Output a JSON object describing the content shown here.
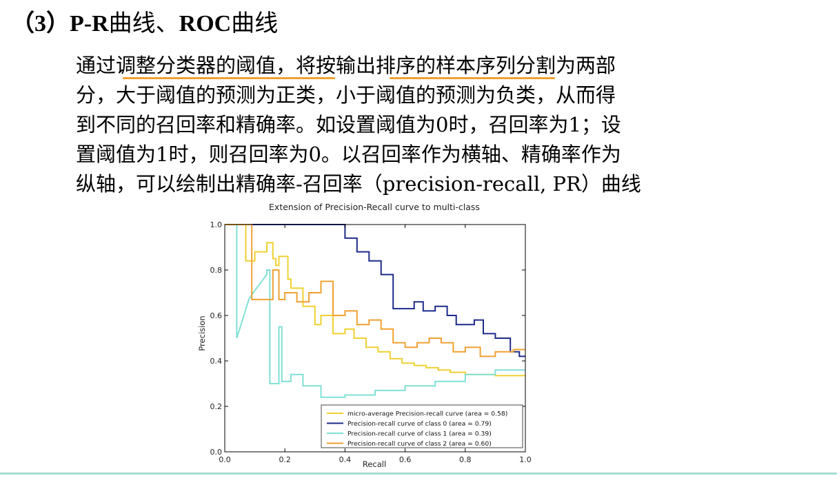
{
  "heading": {
    "number": "（3）",
    "pr": "P-R",
    "curve1": "曲线、",
    "roc": "ROC",
    "curve2": "曲线"
  },
  "paragraph": {
    "lines": [
      "通过调整分类器的阈值，将按输出排序的样本序列分割为两部",
      "分，大于阈值的预测为正类，小于阈值的预测为负类，从而得",
      "到不同的召回率和精确率。如设置阈值为0时，召回率为1；设",
      "置阈值为1时，则召回率为0。以召回率作为横轴、精确率作为",
      "纵轴，可以绘制出精确率-召回率（precision-recall, PR）曲线"
    ]
  },
  "colors": {
    "micro": "#f0d030",
    "class0": "#1c2a8a",
    "class1": "#7fe0d4",
    "class2": "#f0a030",
    "underline": "#f0a030",
    "rule": "#a8dcd2"
  },
  "chart_data": {
    "type": "line",
    "title": "Extension of Precision-Recall curve to multi-class",
    "xlabel": "Recall",
    "ylabel": "Precision",
    "xlim": [
      0.0,
      1.0
    ],
    "ylim": [
      0.0,
      1.0
    ],
    "xticks": [
      "0.0",
      "0.2",
      "0.4",
      "0.6",
      "0.8",
      "1.0"
    ],
    "yticks": [
      "0.0",
      "0.2",
      "0.4",
      "0.6",
      "0.8",
      "1.0"
    ],
    "grid": false,
    "legend_position": "lower-right",
    "series": [
      {
        "name": "micro-average Precision-recall curve (area = 0.58)",
        "color": "#f0d030",
        "x": [
          0.0,
          0.06,
          0.07,
          0.07,
          0.1,
          0.1,
          0.14,
          0.14,
          0.16,
          0.16,
          0.17,
          0.17,
          0.18,
          0.18,
          0.21,
          0.21,
          0.22,
          0.22,
          0.26,
          0.26,
          0.3,
          0.3,
          0.32,
          0.32,
          0.36,
          0.36,
          0.4,
          0.4,
          0.43,
          0.43,
          0.47,
          0.47,
          0.51,
          0.51,
          0.55,
          0.55,
          0.59,
          0.59,
          0.63,
          0.63,
          0.67,
          0.67,
          0.71,
          0.71,
          0.75,
          0.75,
          0.8,
          0.8,
          0.9,
          0.9,
          1.0
        ],
        "y": [
          1.0,
          1.0,
          1.0,
          0.84,
          0.84,
          0.88,
          0.88,
          0.92,
          0.92,
          0.85,
          0.85,
          0.82,
          0.82,
          0.86,
          0.86,
          0.76,
          0.76,
          0.72,
          0.72,
          0.64,
          0.64,
          0.56,
          0.56,
          0.6,
          0.6,
          0.52,
          0.52,
          0.54,
          0.54,
          0.5,
          0.5,
          0.46,
          0.46,
          0.44,
          0.44,
          0.41,
          0.41,
          0.39,
          0.39,
          0.38,
          0.38,
          0.37,
          0.37,
          0.36,
          0.36,
          0.35,
          0.35,
          0.34,
          0.34,
          0.335,
          0.335
        ]
      },
      {
        "name": "Precision-recall curve of class 0 (area = 0.79)",
        "color": "#1c2a8a",
        "x": [
          0.0,
          0.4,
          0.4,
          0.44,
          0.44,
          0.48,
          0.48,
          0.52,
          0.52,
          0.56,
          0.56,
          0.63,
          0.63,
          0.66,
          0.66,
          0.7,
          0.7,
          0.74,
          0.74,
          0.77,
          0.77,
          0.83,
          0.83,
          0.86,
          0.86,
          0.9,
          0.9,
          0.95,
          0.95,
          0.98,
          0.98,
          1.0
        ],
        "y": [
          1.0,
          1.0,
          0.94,
          0.94,
          0.88,
          0.88,
          0.84,
          0.84,
          0.78,
          0.78,
          0.63,
          0.63,
          0.66,
          0.66,
          0.62,
          0.62,
          0.64,
          0.64,
          0.6,
          0.6,
          0.56,
          0.56,
          0.58,
          0.58,
          0.52,
          0.52,
          0.5,
          0.5,
          0.44,
          0.44,
          0.42,
          0.42
        ]
      },
      {
        "name": "Precision-recall curve of class 1 (area = 0.39)",
        "color": "#7fe0d4",
        "x": [
          0.0,
          0.04,
          0.04,
          0.08,
          0.08,
          0.1,
          0.1,
          0.14,
          0.14,
          0.14,
          0.15,
          0.15,
          0.18,
          0.18,
          0.19,
          0.19,
          0.22,
          0.22,
          0.26,
          0.26,
          0.32,
          0.32,
          0.4,
          0.4,
          0.5,
          0.5,
          0.6,
          0.6,
          0.7,
          0.7,
          0.8,
          0.8,
          0.9,
          0.9,
          1.0
        ],
        "y": [
          1.0,
          1.0,
          0.5,
          0.67,
          0.67,
          0.71,
          0.71,
          0.78,
          0.78,
          0.8,
          0.8,
          0.3,
          0.3,
          0.55,
          0.55,
          0.31,
          0.31,
          0.34,
          0.34,
          0.29,
          0.29,
          0.24,
          0.24,
          0.25,
          0.25,
          0.27,
          0.27,
          0.29,
          0.29,
          0.31,
          0.31,
          0.34,
          0.34,
          0.36,
          0.36
        ]
      },
      {
        "name": "Precision-recall curve of class 2 (area = 0.60)",
        "color": "#f0a030",
        "x": [
          0.0,
          0.09,
          0.09,
          0.16,
          0.16,
          0.18,
          0.18,
          0.2,
          0.2,
          0.24,
          0.24,
          0.28,
          0.28,
          0.32,
          0.32,
          0.36,
          0.36,
          0.4,
          0.4,
          0.44,
          0.44,
          0.48,
          0.48,
          0.52,
          0.52,
          0.56,
          0.56,
          0.6,
          0.6,
          0.64,
          0.64,
          0.68,
          0.68,
          0.72,
          0.72,
          0.76,
          0.76,
          0.8,
          0.8,
          0.85,
          0.85,
          0.9,
          0.9,
          0.96,
          0.96,
          1.0
        ],
        "y": [
          1.0,
          1.0,
          0.67,
          0.67,
          0.8,
          0.8,
          0.67,
          0.67,
          0.7,
          0.7,
          0.66,
          0.66,
          0.7,
          0.7,
          0.75,
          0.75,
          0.6,
          0.6,
          0.62,
          0.62,
          0.56,
          0.56,
          0.58,
          0.58,
          0.54,
          0.54,
          0.48,
          0.48,
          0.46,
          0.46,
          0.48,
          0.48,
          0.5,
          0.5,
          0.48,
          0.48,
          0.44,
          0.44,
          0.46,
          0.46,
          0.42,
          0.42,
          0.44,
          0.44,
          0.45,
          0.45
        ]
      }
    ]
  }
}
